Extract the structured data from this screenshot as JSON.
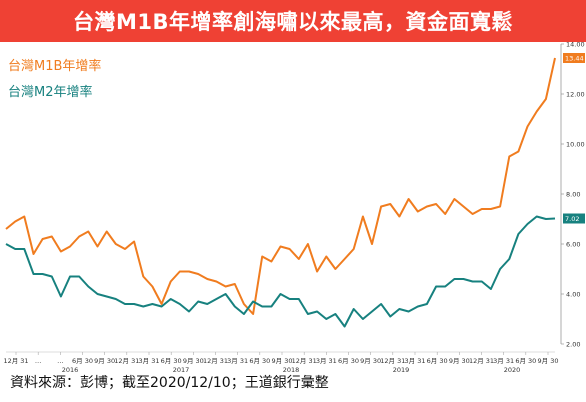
{
  "header": {
    "title": "台灣M1B年增率創海嘯以來最高，資金面寬鬆"
  },
  "footer": {
    "source": "資料來源：彭博；截至2020/12/10；王道銀行彙整"
  },
  "chart_data": {
    "type": "line",
    "title": "台灣M1B年增率創海嘯以來最高，資金面寬鬆",
    "ylim": [
      2,
      14
    ],
    "yticks": [
      "2.00",
      "4.00",
      "6.00",
      "8.00",
      "10.00",
      "12.00",
      "14.00"
    ],
    "x_tick_labels": [
      "12月 31",
      "…",
      "…",
      "6月 30",
      "9月 30",
      "12月 31",
      "3月 31",
      "6月 30",
      "9月 30",
      "12月 31",
      "3月 31",
      "6月 30",
      "9月 30",
      "12月 31",
      "3月 31",
      "6月 30",
      "9月 30",
      "12月 31",
      "3月 31",
      "6月 30",
      "9月 30",
      "12月 31",
      "3月 31",
      "6月 30",
      "9月 30"
    ],
    "year_labels": [
      "2016",
      "2017",
      "2018",
      "2019",
      "2020"
    ],
    "grid": false,
    "legend_position": "top-left",
    "series": [
      {
        "name": "台灣M1B年增率",
        "color": "#f07c1f",
        "last_value_label": "13.44",
        "values": [
          6.6,
          6.9,
          7.1,
          5.6,
          6.2,
          6.3,
          5.7,
          5.9,
          6.3,
          6.5,
          5.9,
          6.5,
          6.0,
          5.8,
          6.1,
          4.7,
          4.3,
          3.6,
          4.5,
          4.9,
          4.9,
          4.8,
          4.6,
          4.5,
          4.3,
          4.4,
          3.6,
          3.2,
          5.5,
          5.3,
          5.9,
          5.8,
          5.4,
          6.0,
          4.9,
          5.5,
          5.0,
          5.4,
          5.8,
          7.1,
          6.0,
          7.5,
          7.6,
          7.1,
          7.8,
          7.3,
          7.5,
          7.6,
          7.2,
          7.8,
          7.5,
          7.2,
          7.4,
          7.4,
          7.5,
          9.5,
          9.7,
          10.7,
          11.3,
          11.8,
          13.44
        ]
      },
      {
        "name": "台灣M2年增率",
        "color": "#17817f",
        "last_value_label": "7.02",
        "values": [
          6.0,
          5.8,
          5.8,
          4.8,
          4.8,
          4.7,
          3.9,
          4.7,
          4.7,
          4.3,
          4.0,
          3.9,
          3.8,
          3.6,
          3.6,
          3.5,
          3.6,
          3.5,
          3.8,
          3.6,
          3.3,
          3.7,
          3.6,
          3.8,
          4.0,
          3.5,
          3.2,
          3.7,
          3.5,
          3.5,
          4.0,
          3.8,
          3.8,
          3.2,
          3.3,
          3.0,
          3.2,
          2.7,
          3.4,
          3.0,
          3.3,
          3.6,
          3.1,
          3.4,
          3.3,
          3.5,
          3.6,
          4.3,
          4.3,
          4.6,
          4.6,
          4.5,
          4.5,
          4.2,
          5.0,
          5.4,
          6.4,
          6.8,
          7.1,
          7.0,
          7.02
        ]
      }
    ]
  }
}
